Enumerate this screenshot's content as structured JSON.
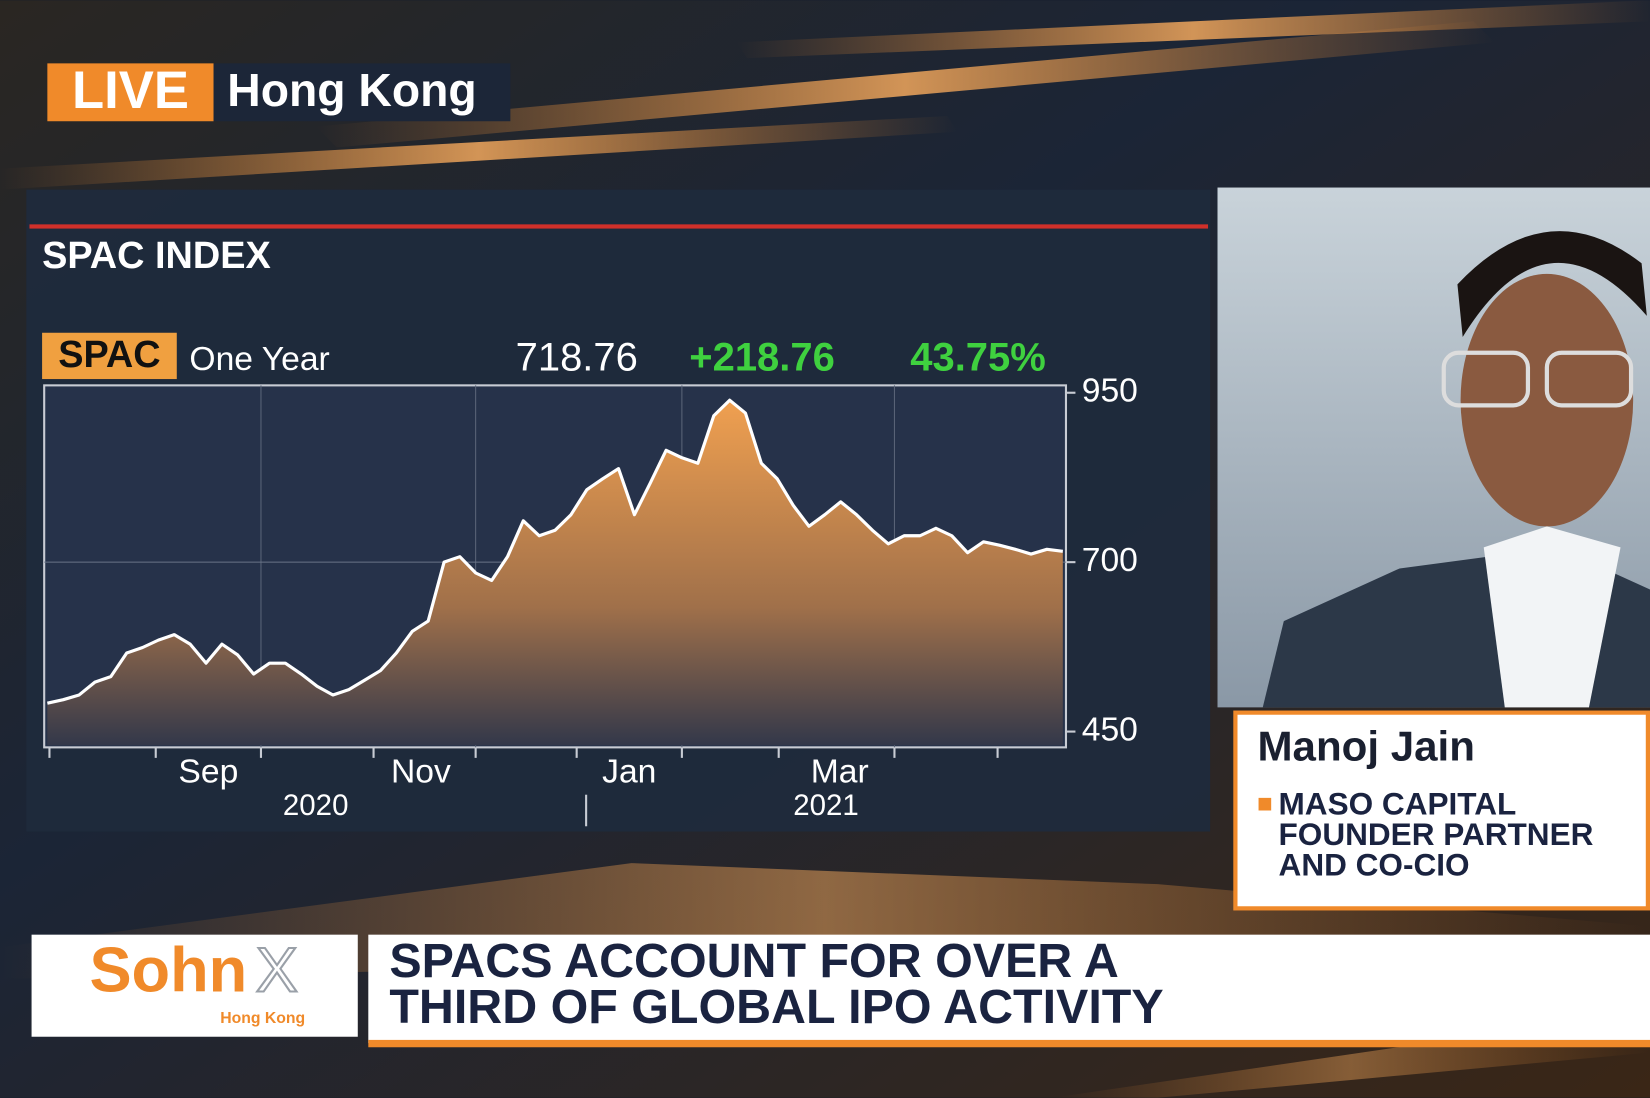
{
  "live_badge": {
    "label": "LIVE",
    "location": "Hong Kong"
  },
  "chart_data": {
    "type": "line",
    "title": "SPAC INDEX",
    "ticker": "SPAC",
    "period": "One Year",
    "last": "718.76",
    "change": "+218.76",
    "change_percent": "43.75%",
    "x_labels": [
      "Sep",
      "Nov",
      "Jan",
      "Mar"
    ],
    "year_labels": [
      "2020",
      "2021"
    ],
    "series": [
      {
        "color": "#ffffff",
        "values": [
          492,
          497,
          504,
          523,
          531,
          566,
          574,
          585,
          593,
          579,
          551,
          579,
          563,
          535,
          551,
          551,
          535,
          517,
          504,
          512,
          526,
          540,
          566,
          598,
          613,
          700,
          708,
          684,
          673,
          708,
          761,
          739,
          747,
          770,
          807,
          823,
          838,
          770,
          817,
          865,
          854,
          846,
          916,
          939,
          920,
          846,
          823,
          784,
          753,
          770,
          789,
          770,
          747,
          727,
          739,
          739,
          750,
          739,
          714,
          730,
          725,
          719,
          712,
          719,
          716
        ]
      }
    ],
    "ylim": [
      450,
      950
    ],
    "yticks": [
      450,
      700,
      950
    ],
    "grid": true
  },
  "guest": {
    "name": "Manoj Jain",
    "title_lines": [
      "MASO CAPITAL",
      "FOUNDER PARTNER",
      "AND CO-CIO"
    ]
  },
  "logo": {
    "brand": "Sohn",
    "mark": "X",
    "location": "Hong Kong"
  },
  "headline": {
    "lines": [
      "SPACS ACCOUNT FOR OVER A",
      "THIRD OF GLOBAL IPO ACTIVITY"
    ]
  }
}
